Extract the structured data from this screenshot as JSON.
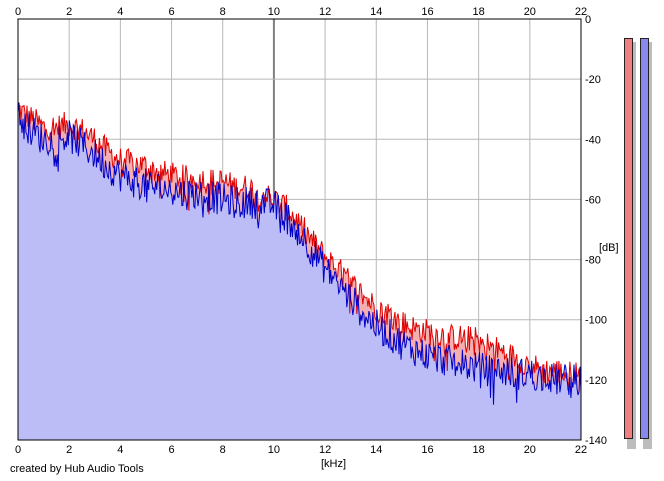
{
  "plot": {
    "x_unit": "[kHz]",
    "y_unit": "[dB]",
    "x_ticks": [
      "0",
      "2",
      "4",
      "6",
      "8",
      "10",
      "12",
      "14",
      "16",
      "18",
      "20",
      "22"
    ],
    "y_ticks": [
      "0",
      "-20",
      "-40",
      "-60",
      "-80",
      "-100",
      "-120",
      "-140"
    ],
    "background": "#ffffff",
    "grid_color": "#b8b8b8",
    "frame_color": "#000000"
  },
  "footer": {
    "credit": "created by Hub Audio Tools"
  },
  "chart_data": {
    "type": "area",
    "xlabel": "[kHz]",
    "ylabel": "[dB]",
    "xlim": [
      0,
      22
    ],
    "ylim": [
      -140,
      0
    ],
    "grid": true,
    "series": [
      {
        "color": "#e00000",
        "fill": "#f4b0b0",
        "x": [
          0,
          0.5,
          1,
          1.5,
          2,
          2.5,
          3,
          3.5,
          4,
          4.5,
          5,
          5.5,
          6,
          6.5,
          7,
          7.5,
          8,
          8.5,
          9,
          9.5,
          10,
          10.5,
          11,
          11.5,
          12,
          12.5,
          13,
          13.5,
          14,
          14.5,
          15,
          15.5,
          16,
          16.5,
          17,
          17.5,
          18,
          18.5,
          19,
          19.5,
          20,
          20.5,
          21,
          21.5,
          22
        ],
        "y": [
          -30,
          -33,
          -36,
          -36,
          -35,
          -37,
          -40,
          -44,
          -47,
          -48,
          -49,
          -51,
          -52,
          -53,
          -53,
          -54,
          -54,
          -56,
          -56,
          -58,
          -60,
          -63,
          -68,
          -74,
          -79,
          -83,
          -88,
          -92,
          -96,
          -98,
          -101,
          -103,
          -104,
          -105,
          -106,
          -106,
          -107,
          -109,
          -111,
          -113,
          -115,
          -117,
          -117,
          -118,
          -118
        ]
      },
      {
        "color": "#0000c8",
        "fill": "#bcbcf6",
        "x": [
          0,
          0.5,
          1,
          1.5,
          2,
          2.5,
          3,
          3.5,
          4,
          4.5,
          5,
          5.5,
          6,
          6.5,
          7,
          7.5,
          8,
          8.5,
          9,
          9.5,
          10,
          10.5,
          11,
          11.5,
          12,
          12.5,
          13,
          13.5,
          14,
          14.5,
          15,
          15.5,
          16,
          16.5,
          17,
          17.5,
          18,
          18.5,
          19,
          19.5,
          20,
          20.5,
          21,
          21.5,
          22
        ],
        "y": [
          -32,
          -37,
          -40,
          -40,
          -39,
          -42,
          -45,
          -49,
          -52,
          -54,
          -55,
          -56,
          -57,
          -58,
          -58,
          -59,
          -60,
          -61,
          -61,
          -61,
          -62,
          -66,
          -71,
          -77,
          -83,
          -88,
          -93,
          -98,
          -102,
          -105,
          -108,
          -110,
          -112,
          -113,
          -114,
          -115,
          -116,
          -117,
          -117,
          -118,
          -118,
          -119,
          -120,
          -120,
          -120
        ]
      }
    ]
  },
  "meters": [
    {
      "color": "#f08080"
    },
    {
      "color": "#8888ee"
    }
  ]
}
